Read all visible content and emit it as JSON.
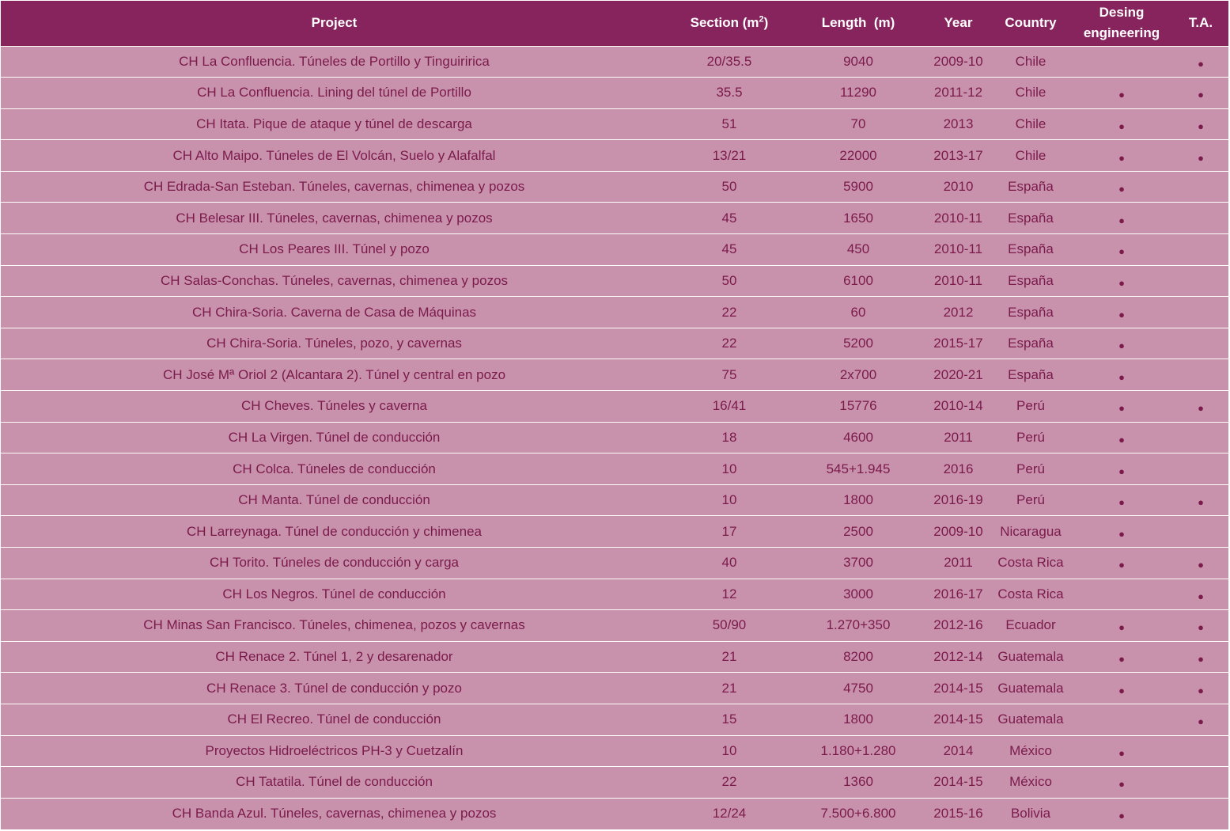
{
  "table": {
    "headers": {
      "project": "Project",
      "section": "Section (m",
      "section_sup": "2",
      "section_close": ")",
      "length": "Length  (m)",
      "year": "Year",
      "country": "Country",
      "design_line1": "Desing",
      "design_line2": "engineering",
      "ta": "T.A."
    },
    "marker": "●",
    "rows": [
      {
        "project": "CH La Confluencia. Túneles de Portillo y Tinguiririca",
        "section": "20/35.5",
        "length": "9040",
        "year": "2009-10",
        "country": "Chile",
        "design": false,
        "ta": true
      },
      {
        "project": "CH La Confluencia. Lining del túnel de Portillo",
        "section": "35.5",
        "length": "11290",
        "year": "2011-12",
        "country": "Chile",
        "design": true,
        "ta": true
      },
      {
        "project": "CH Itata. Pique de ataque y túnel de descarga",
        "section": "51",
        "length": "70",
        "year": "2013",
        "country": "Chile",
        "design": true,
        "ta": true
      },
      {
        "project": "CH Alto Maipo. Túneles de El Volcán, Suelo y Alafalfal",
        "section": "13/21",
        "length": "22000",
        "year": "2013-17",
        "country": "Chile",
        "design": true,
        "ta": true
      },
      {
        "project": "CH Edrada-San Esteban. Túneles, cavernas, chimenea y pozos",
        "section": "50",
        "length": "5900",
        "year": "2010",
        "country": "España",
        "design": true,
        "ta": false
      },
      {
        "project": "CH Belesar III. Túneles, cavernas, chimenea y pozos",
        "section": "45",
        "length": "1650",
        "year": "2010-11",
        "country": "España",
        "design": true,
        "ta": false
      },
      {
        "project": "CH Los Peares III. Túnel y pozo",
        "section": "45",
        "length": "450",
        "year": "2010-11",
        "country": "España",
        "design": true,
        "ta": false
      },
      {
        "project": "CH Salas-Conchas. Túneles, cavernas, chimenea y pozos",
        "section": "50",
        "length": "6100",
        "year": "2010-11",
        "country": "España",
        "design": true,
        "ta": false
      },
      {
        "project": "CH Chira-Soria. Caverna de Casa de Máquinas",
        "section": "22",
        "length": "60",
        "year": "2012",
        "country": "España",
        "design": true,
        "ta": false
      },
      {
        "project": "CH Chira-Soria. Túneles, pozo, y cavernas",
        "section": "22",
        "length": "5200",
        "year": "2015-17",
        "country": "España",
        "design": true,
        "ta": false
      },
      {
        "project": "CH José Mª Oriol 2 (Alcantara 2). Túnel y central en pozo",
        "section": "75",
        "length": "2x700",
        "year": "2020-21",
        "country": "España",
        "design": true,
        "ta": false
      },
      {
        "project": "CH Cheves. Túneles y caverna",
        "section": "16/41",
        "length": "15776",
        "year": "2010-14",
        "country": "Perú",
        "design": true,
        "ta": true
      },
      {
        "project": "CH La Virgen. Túnel de conducción",
        "section": "18",
        "length": "4600",
        "year": "2011",
        "country": "Perú",
        "design": true,
        "ta": false
      },
      {
        "project": "CH Colca. Túneles de conducción",
        "section": "10",
        "length": "545+1.945",
        "year": "2016",
        "country": "Perú",
        "design": true,
        "ta": false
      },
      {
        "project": "CH Manta. Túnel de conducción",
        "section": "10",
        "length": "1800",
        "year": "2016-19",
        "country": "Perú",
        "design": true,
        "ta": true
      },
      {
        "project": "CH Larreynaga. Túnel de conducción y chimenea",
        "section": "17",
        "length": "2500",
        "year": "2009-10",
        "country": "Nicaragua",
        "design": true,
        "ta": false
      },
      {
        "project": "CH Torito. Túneles de conducción y carga",
        "section": "40",
        "length": "3700",
        "year": "2011",
        "country": "Costa Rica",
        "design": true,
        "ta": true
      },
      {
        "project": "CH Los Negros. Túnel de conducción",
        "section": "12",
        "length": "3000",
        "year": "2016-17",
        "country": "Costa Rica",
        "design": false,
        "ta": true
      },
      {
        "project": "CH Minas San Francisco. Túneles, chimenea, pozos y cavernas",
        "section": "50/90",
        "length": "1.270+350",
        "year": "2012-16",
        "country": "Ecuador",
        "design": true,
        "ta": true
      },
      {
        "project": "CH Renace 2. Túnel 1, 2 y desarenador",
        "section": "21",
        "length": "8200",
        "year": "2012-14",
        "country": "Guatemala",
        "design": true,
        "ta": true
      },
      {
        "project": "CH Renace 3. Túnel de conducción y pozo",
        "section": "21",
        "length": "4750",
        "year": "2014-15",
        "country": "Guatemala",
        "design": true,
        "ta": true
      },
      {
        "project": "CH El Recreo. Túnel de conducción",
        "section": "15",
        "length": "1800",
        "year": "2014-15",
        "country": "Guatemala",
        "design": false,
        "ta": true
      },
      {
        "project": "Proyectos Hidroeléctricos PH-3 y Cuetzalín",
        "section": "10",
        "length": "1.180+1.280",
        "year": "2014",
        "country": "México",
        "design": true,
        "ta": false
      },
      {
        "project": "CH Tatatila. Túnel de conducción",
        "section": "22",
        "length": "1360",
        "year": "2014-15",
        "country": "México",
        "design": true,
        "ta": false
      },
      {
        "project": "CH Banda Azul. Túneles, cavernas, chimenea y pozos",
        "section": "12/24",
        "length": "7.500+6.800",
        "year": "2015-16",
        "country": "Bolivia",
        "design": true,
        "ta": false
      }
    ]
  }
}
